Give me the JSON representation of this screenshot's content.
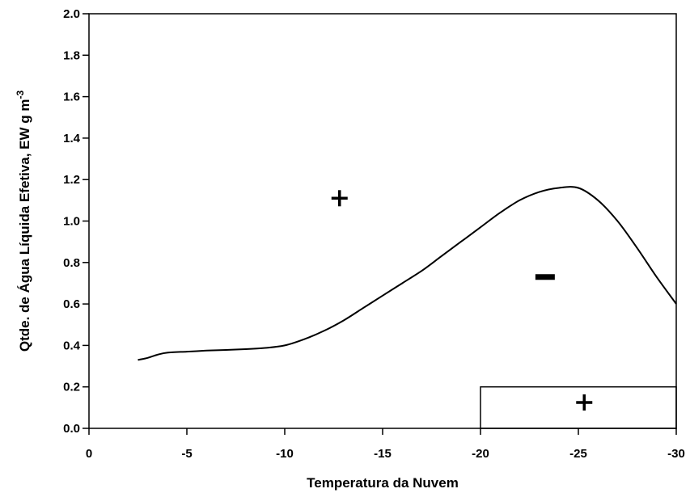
{
  "chart_data": {
    "type": "line",
    "xlabel": "Temperatura da Nuvem",
    "ylabel": "Qtde. de Água Líquida Efetiva,  EW  g m",
    "ylabel_superscript": "-3",
    "xlim": [
      0,
      -30
    ],
    "ylim": [
      0.0,
      2.0
    ],
    "x_ticks": [
      "0",
      "-5",
      "-10",
      "-15",
      "-20",
      "-25",
      "-30"
    ],
    "y_ticks": [
      "0.0",
      "0.2",
      "0.4",
      "0.6",
      "0.8",
      "1.0",
      "1.2",
      "1.4",
      "1.6",
      "1.8",
      "2.0"
    ],
    "grid": false,
    "series": [
      {
        "x": [
          -2.5,
          -3.0,
          -3.5,
          -4.0,
          -5.0,
          -6.0,
          -7.0,
          -8.0,
          -9.0,
          -10.0,
          -11.0,
          -12.0,
          -13.0,
          -14.0,
          -15.0,
          -16.0,
          -17.0,
          -18.0,
          -19.0,
          -20.0,
          -21.0,
          -22.0,
          -23.0,
          -24.0,
          -25.0,
          -26.0,
          -27.0,
          -28.0,
          -29.0,
          -30.0
        ],
        "values": [
          0.33,
          0.34,
          0.355,
          0.365,
          0.37,
          0.375,
          0.378,
          0.382,
          0.388,
          0.4,
          0.43,
          0.47,
          0.52,
          0.58,
          0.64,
          0.7,
          0.76,
          0.83,
          0.9,
          0.97,
          1.04,
          1.1,
          1.14,
          1.16,
          1.16,
          1.1,
          1.0,
          0.87,
          0.73,
          0.6
        ]
      }
    ],
    "region": {
      "x_from": -20,
      "x_to": -30,
      "y_from": 0.0,
      "y_to": 0.2
    },
    "annotations": [
      {
        "text": "+",
        "x": -12.8,
        "y": 1.11
      },
      {
        "text": "−",
        "x": -23.3,
        "y": 0.73
      },
      {
        "text": "+",
        "x": -25.3,
        "y": 0.125
      }
    ]
  }
}
